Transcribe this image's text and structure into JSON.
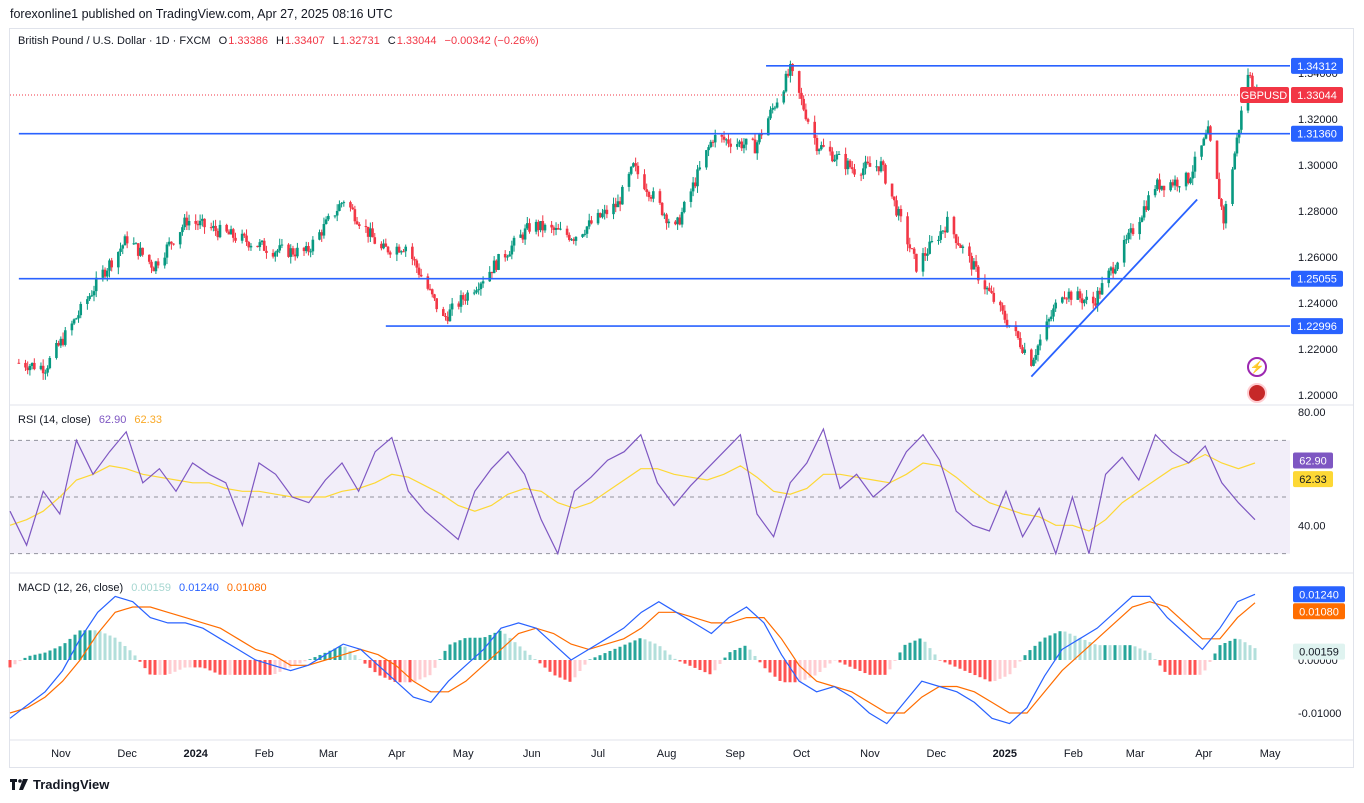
{
  "header": {
    "published": "forexonline1 published on TradingView.com, Apr 27, 2025 08:16 UTC"
  },
  "symbol": {
    "name": "British Pound / U.S. Dollar · 1D · FXCM",
    "o_label": "O",
    "o": "1.33386",
    "h_label": "H",
    "h": "1.33407",
    "l_label": "L",
    "l": "1.32731",
    "c_label": "C",
    "c": "1.33044",
    "change": "−0.00342 (−0.26%)",
    "ticker_tag": "GBPUSD",
    "last_price": "1.33044"
  },
  "rsi": {
    "label": "RSI (14, close)",
    "value": "62.90",
    "ma": "62.33"
  },
  "macd": {
    "label": "MACD (12, 26, close)",
    "hist": "0.00159",
    "macd": "0.01240",
    "signal": "0.01080"
  },
  "footer": {
    "brand": "TradingView"
  },
  "colors": {
    "up": "#089981",
    "down": "#f23645",
    "line": "#2962ff",
    "rsi": "#7e57c2",
    "rsi_ma": "#fdd835",
    "signal": "#ff6d00"
  },
  "icons": [
    "lightning-icon",
    "uk-flag-icon"
  ],
  "chart_data": [
    {
      "type": "candlestick",
      "series_name": "GBPUSD",
      "x_ticks": [
        "Nov",
        "Dec",
        "2024",
        "Feb",
        "Mar",
        "Apr",
        "May",
        "Jun",
        "Jul",
        "Aug",
        "Sep",
        "Oct",
        "Nov",
        "Dec",
        "2025",
        "Feb",
        "Mar",
        "Apr",
        "May"
      ],
      "y_ticks": [
        "1.34000",
        "1.32000",
        "1.30000",
        "1.28000",
        "1.26000",
        "1.24000",
        "1.22000",
        "1.20000"
      ],
      "ylim": [
        1.2,
        1.345
      ],
      "close_path": [
        [
          "2023-10-13",
          1.214
        ],
        [
          "2023-10-25",
          1.212
        ],
        [
          "2023-11-07",
          1.232
        ],
        [
          "2023-11-20",
          1.253
        ],
        [
          "2023-12-01",
          1.268
        ],
        [
          "2023-12-13",
          1.256
        ],
        [
          "2023-12-28",
          1.276
        ],
        [
          "2024-01-15",
          1.27
        ],
        [
          "2024-02-05",
          1.263
        ],
        [
          "2024-02-20",
          1.262
        ],
        [
          "2024-03-08",
          1.285
        ],
        [
          "2024-03-25",
          1.263
        ],
        [
          "2024-04-05",
          1.265
        ],
        [
          "2024-04-22",
          1.233
        ],
        [
          "2024-05-10",
          1.251
        ],
        [
          "2024-06-01",
          1.274
        ],
        [
          "2024-06-20",
          1.269
        ],
        [
          "2024-07-10",
          1.283
        ],
        [
          "2024-07-17",
          1.299
        ],
        [
          "2024-08-05",
          1.272
        ],
        [
          "2024-08-22",
          1.312
        ],
        [
          "2024-09-10",
          1.308
        ],
        [
          "2024-09-26",
          1.341
        ],
        [
          "2024-10-08",
          1.309
        ],
        [
          "2024-10-25",
          1.298
        ],
        [
          "2024-11-06",
          1.3
        ],
        [
          "2024-11-22",
          1.256
        ],
        [
          "2024-12-06",
          1.275
        ],
        [
          "2024-12-20",
          1.252
        ],
        [
          "2025-01-13",
          1.215
        ],
        [
          "2025-01-27",
          1.245
        ],
        [
          "2025-02-10",
          1.24
        ],
        [
          "2025-02-26",
          1.268
        ],
        [
          "2025-03-10",
          1.291
        ],
        [
          "2025-03-25",
          1.294
        ],
        [
          "2025-04-03",
          1.314
        ],
        [
          "2025-04-10",
          1.276
        ],
        [
          "2025-04-21",
          1.34
        ],
        [
          "2025-04-25",
          1.33044
        ]
      ],
      "horizontal_levels": [
        {
          "label": "1.34312",
          "value": 1.34312,
          "from": "2024-09-15"
        },
        {
          "label": "1.31360",
          "value": 1.3136,
          "from": "2023-10-13"
        },
        {
          "label": "1.25055",
          "value": 1.25055,
          "from": "2023-10-13"
        },
        {
          "label": "1.22996",
          "value": 1.22996,
          "from": "2024-03-27"
        }
      ],
      "trend_line": {
        "from": [
          "2025-01-13",
          1.208
        ],
        "to": [
          "2025-03-29",
          1.285
        ]
      }
    },
    {
      "type": "line",
      "title": "RSI (14, close)",
      "y_ticks": [
        "80.00",
        "40.00"
      ],
      "bands": [
        70,
        50,
        30
      ],
      "series": [
        {
          "name": "RSI",
          "last": 62.9
        },
        {
          "name": "MA",
          "last": 62.33
        }
      ],
      "rsi_path": [
        45,
        33,
        52,
        44,
        70,
        58,
        66,
        73,
        55,
        60,
        52,
        62,
        58,
        55,
        40,
        62,
        58,
        50,
        48,
        56,
        62,
        52,
        66,
        71,
        52,
        45,
        40,
        35,
        52,
        60,
        66,
        58,
        42,
        30,
        52,
        57,
        63,
        66,
        72,
        55,
        47,
        54,
        60,
        66,
        72,
        44,
        36,
        55,
        62,
        74,
        53,
        58,
        50,
        55,
        66,
        72,
        63,
        45,
        40,
        38,
        52,
        36,
        46,
        30,
        50,
        30,
        58,
        64,
        56,
        72,
        66,
        62,
        68,
        55,
        48,
        42
      ],
      "ma_path": [
        40,
        42,
        45,
        50,
        56,
        58,
        61,
        60,
        58,
        57,
        56,
        55,
        55,
        53,
        52,
        52,
        51,
        50,
        50,
        50,
        52,
        53,
        55,
        58,
        57,
        54,
        51,
        47,
        45,
        47,
        51,
        53,
        52,
        48,
        46,
        48,
        52,
        56,
        60,
        60,
        58,
        57,
        56,
        58,
        61,
        57,
        52,
        51,
        53,
        58,
        58,
        57,
        56,
        55,
        58,
        62,
        61,
        57,
        52,
        48,
        46,
        44,
        43,
        40,
        40,
        38,
        42,
        48,
        52,
        56,
        60,
        62,
        65,
        62,
        60,
        62
      ]
    },
    {
      "type": "bar+line",
      "title": "MACD (12, 26, close)",
      "y_ticks": [
        "0.00000",
        "-0.01000"
      ],
      "series": [
        {
          "name": "Histogram",
          "last": 0.00159
        },
        {
          "name": "MACD",
          "last": 0.0124
        },
        {
          "name": "Signal",
          "last": 0.0108
        }
      ],
      "macd_path": [
        -0.011,
        -0.0085,
        -0.006,
        -0.002,
        0.004,
        0.009,
        0.012,
        0.011,
        0.008,
        0.007,
        0.007,
        0.006,
        0.004,
        0.002,
        0.0,
        -0.001,
        -0.002,
        -0.001,
        0.001,
        0.003,
        0.002,
        -0.001,
        -0.004,
        -0.007,
        -0.008,
        -0.004,
        -0.001,
        0.002,
        0.006,
        0.007,
        0.006,
        0.003,
        0.0,
        0.002,
        0.004,
        0.006,
        0.009,
        0.011,
        0.009,
        0.007,
        0.005,
        0.008,
        0.01,
        0.007,
        0.001,
        -0.004,
        -0.006,
        -0.005,
        -0.007,
        -0.01,
        -0.012,
        -0.008,
        -0.004,
        -0.005,
        -0.006,
        -0.008,
        -0.011,
        -0.012,
        -0.009,
        -0.003,
        0.002,
        0.004,
        0.006,
        0.009,
        0.012,
        0.012,
        0.008,
        0.005,
        0.002,
        0.006,
        0.011,
        0.0124
      ],
      "signal_path": [
        -0.01,
        -0.009,
        -0.007,
        -0.004,
        0.0,
        0.005,
        0.009,
        0.01,
        0.01,
        0.009,
        0.008,
        0.007,
        0.006,
        0.004,
        0.002,
        0.001,
        -0.001,
        -0.001,
        0.0,
        0.001,
        0.002,
        0.001,
        -0.001,
        -0.004,
        -0.006,
        -0.006,
        -0.004,
        -0.001,
        0.002,
        0.005,
        0.006,
        0.005,
        0.003,
        0.002,
        0.003,
        0.004,
        0.006,
        0.009,
        0.009,
        0.008,
        0.007,
        0.007,
        0.008,
        0.008,
        0.004,
        -0.001,
        -0.004,
        -0.005,
        -0.006,
        -0.008,
        -0.01,
        -0.01,
        -0.007,
        -0.005,
        -0.005,
        -0.006,
        -0.008,
        -0.01,
        -0.01,
        -0.006,
        -0.002,
        0.001,
        0.004,
        0.007,
        0.01,
        0.011,
        0.01,
        0.007,
        0.004,
        0.004,
        0.008,
        0.0108
      ]
    }
  ]
}
